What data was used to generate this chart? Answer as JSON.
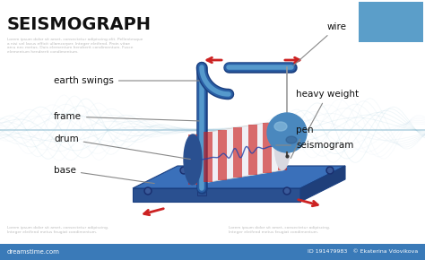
{
  "title": "SEISMOGRAPH",
  "title_fontsize": 14,
  "title_fontweight": "bold",
  "title_color": "#111111",
  "bg_color": "#ffffff",
  "wave_color": "#8bbccc",
  "blue_box_color": "#5b9ec9",
  "base_top_color": "#3a6db5",
  "base_front_color": "#2a5090",
  "base_side_color": "#1f3f7a",
  "pole_dark": "#2a5090",
  "pole_light": "#4a80c0",
  "drum_body_color": "#f0f0f0",
  "drum_cap_color": "#2a5090",
  "drum_stripe_color": "#cc2222",
  "ball_color": "#4a88c0",
  "ball_highlight": "#88bbdd",
  "wire_color": "#aaaaaa",
  "arrow_color": "#cc2222",
  "label_color": "#111111",
  "line_color": "#888888",
  "id_text": "191479983",
  "author_text": "Ekaterina Vdovikova",
  "label_fontsize": 7.5
}
